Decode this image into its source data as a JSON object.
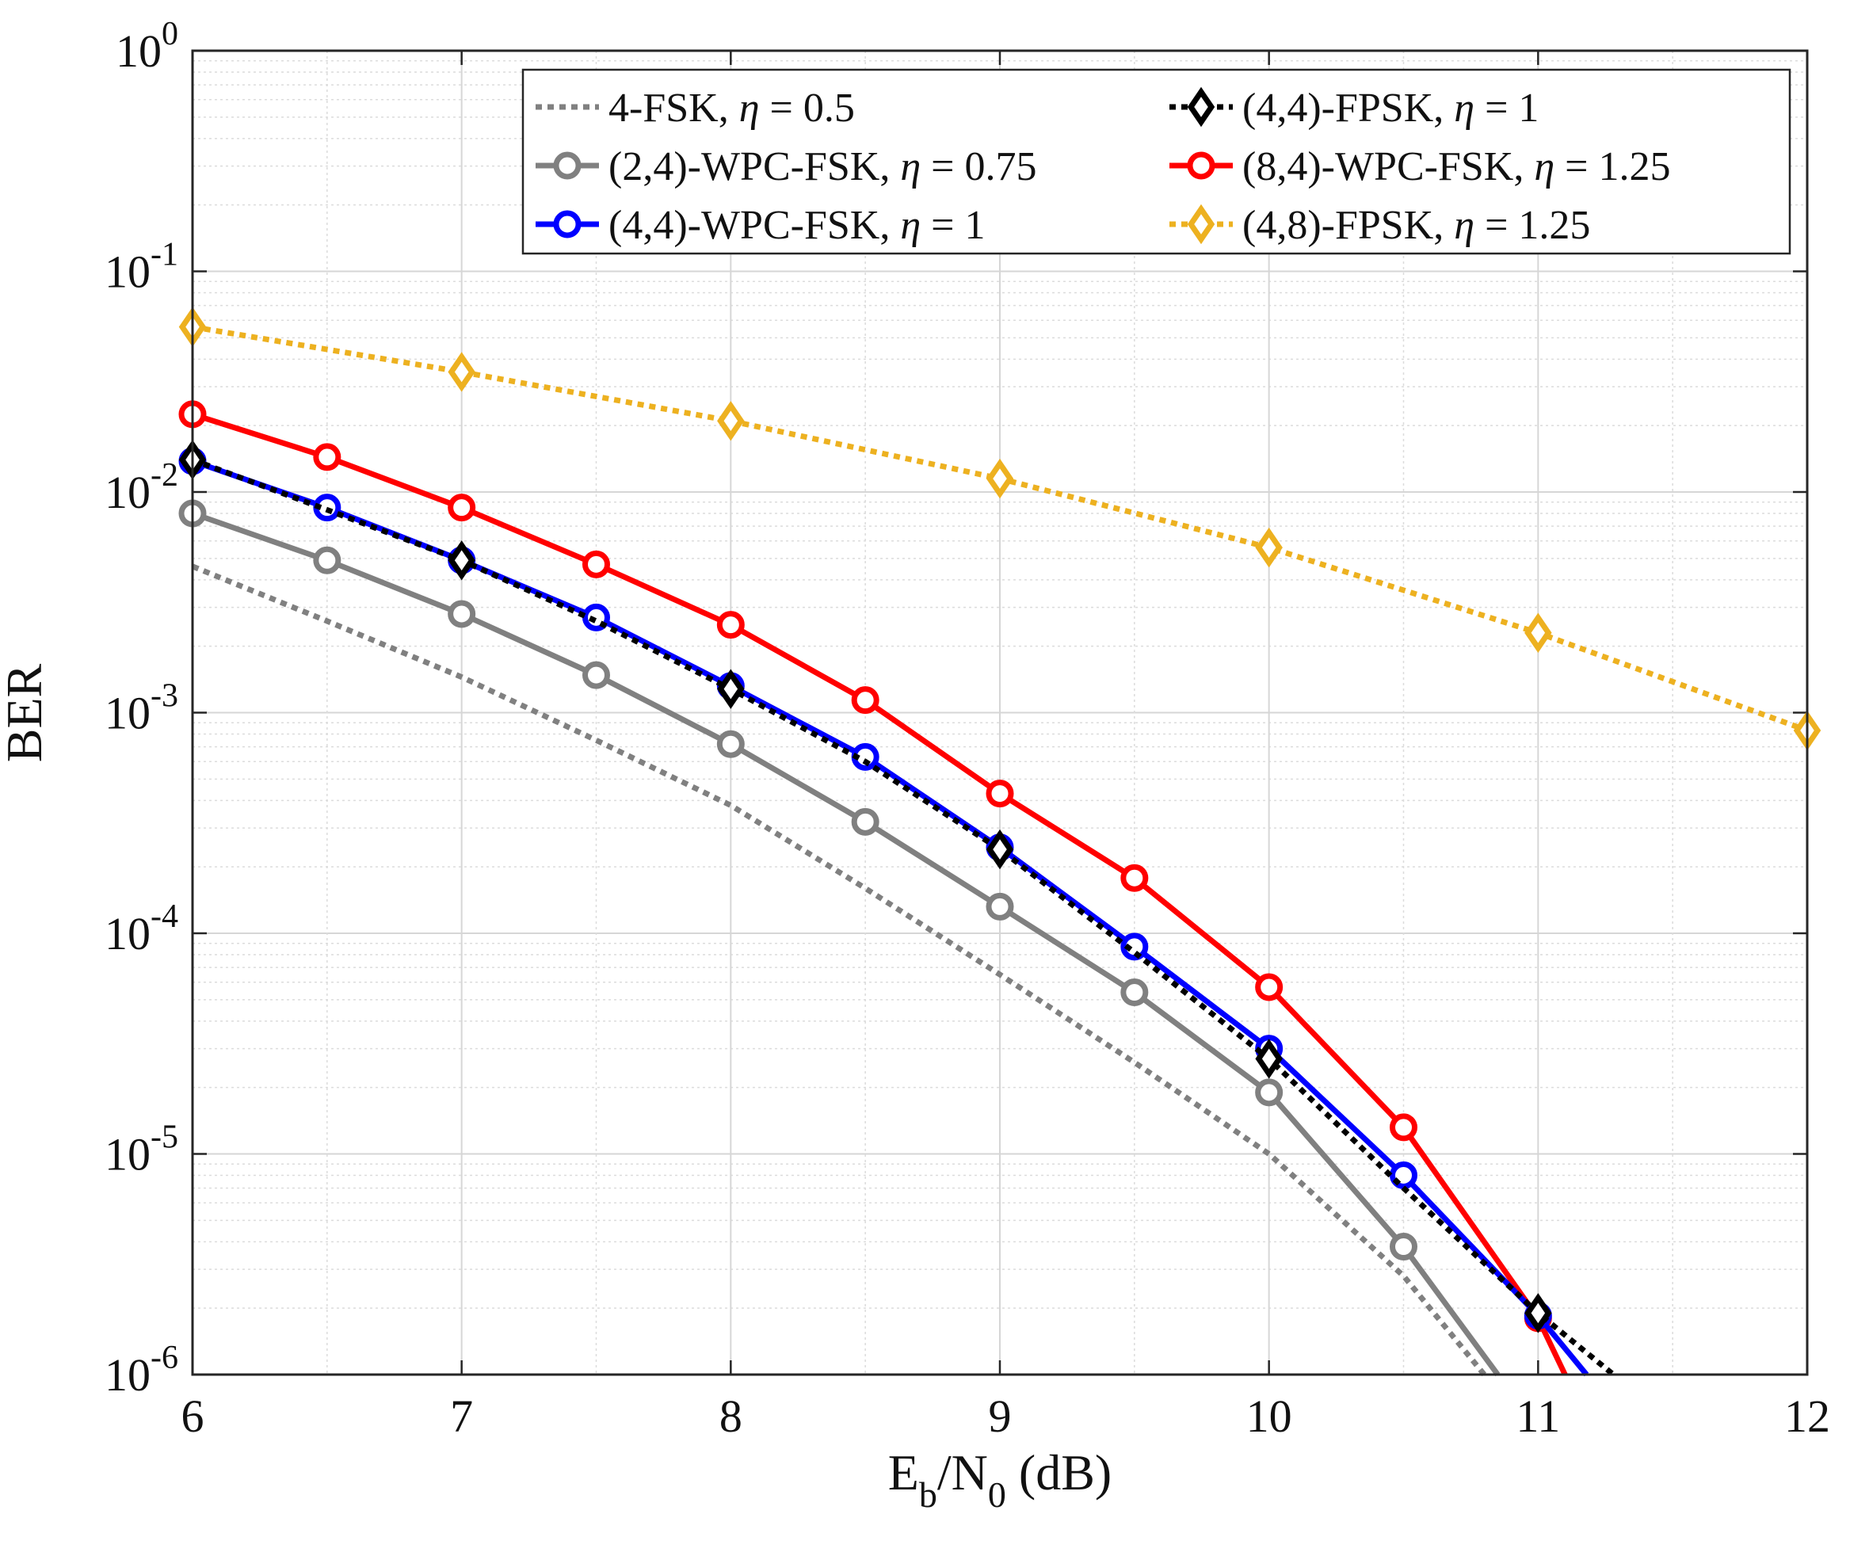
{
  "chart_data": {
    "type": "line",
    "title": "",
    "xlabel": "E_b/N_0 (dB)",
    "xlabel_parts": {
      "main1": "E",
      "sub1": "b",
      "main2": "/N",
      "sub2": "0",
      "suffix": " (dB)"
    },
    "ylabel": "BER",
    "xlim": [
      6,
      12
    ],
    "ylim": [
      1e-06,
      1
    ],
    "yscale": "log",
    "grid": true,
    "legend_position": "top-right",
    "x_ticks": [
      "6",
      "7",
      "8",
      "9",
      "10",
      "11",
      "12"
    ],
    "y_ticks": [
      {
        "base": "10",
        "exp": "0"
      },
      {
        "base": "10",
        "exp": "-1"
      },
      {
        "base": "10",
        "exp": "-2"
      },
      {
        "base": "10",
        "exp": "-3"
      },
      {
        "base": "10",
        "exp": "-4"
      },
      {
        "base": "10",
        "exp": "-5"
      },
      {
        "base": "10",
        "exp": "-6"
      }
    ],
    "series": [
      {
        "name": "4-FSK, η = 0.5",
        "label_prefix": "4-FSK, ",
        "label_eta": "η",
        "label_value": " = 0.5",
        "color": "#808080",
        "style": "dotted",
        "marker": "none",
        "x": [
          6,
          6.5,
          7,
          7.5,
          8,
          8.5,
          9,
          9.5,
          10,
          10.5,
          10.8
        ],
        "y": [
          0.0046,
          0.0026,
          0.00145,
          0.00075,
          0.00038,
          0.00016,
          6.5e-05,
          2.6e-05,
          1e-05,
          2.8e-06,
          1e-06
        ]
      },
      {
        "name": "(2,4)-WPC-FSK, η = 0.75",
        "label_prefix": "(2,4)-WPC-FSK, ",
        "label_eta": "η",
        "label_value": " = 0.75",
        "color": "#808080",
        "style": "solid",
        "marker": "circle",
        "x": [
          6,
          6.5,
          7,
          7.5,
          8,
          8.5,
          9,
          9.5,
          10,
          10.5,
          10.85
        ],
        "y": [
          0.008,
          0.0049,
          0.0028,
          0.00148,
          0.00072,
          0.00032,
          0.000132,
          5.4e-05,
          1.9e-05,
          3.8e-06,
          1e-06
        ],
        "markers_on": [
          6,
          6.5,
          7,
          7.5,
          8,
          8.5,
          9,
          9.5,
          10,
          10.5
        ]
      },
      {
        "name": "(4,4)-WPC-FSK, η = 1",
        "label_prefix": "(4,4)-WPC-FSK, ",
        "label_eta": "η",
        "label_value": " = 1",
        "color": "#0000ff",
        "style": "solid",
        "marker": "circle",
        "x": [
          6,
          6.5,
          7,
          7.5,
          8,
          8.5,
          9,
          9.5,
          10,
          10.5,
          11,
          11.18
        ],
        "y": [
          0.0138,
          0.0085,
          0.0049,
          0.0027,
          0.00132,
          0.00063,
          0.000245,
          8.7e-05,
          3e-05,
          8e-06,
          1.85e-06,
          1e-06
        ],
        "markers_on": [
          6,
          6.5,
          7,
          7.5,
          8,
          8.5,
          9,
          9.5,
          10,
          10.5,
          11
        ]
      },
      {
        "name": "(4,4)-FPSK, η = 1",
        "label_prefix": "(4,4)-FPSK, ",
        "label_eta": "η",
        "label_value": " = 1",
        "color": "#000000",
        "style": "dotted",
        "marker": "diamond",
        "x": [
          6,
          6.5,
          7,
          7.5,
          8,
          8.5,
          9,
          9.5,
          10,
          10.5,
          11,
          11.28
        ],
        "y": [
          0.014,
          0.0083,
          0.0049,
          0.0026,
          0.00128,
          0.0006,
          0.00024,
          8.2e-05,
          2.7e-05,
          7e-06,
          1.9e-06,
          1e-06
        ],
        "markers_on": [
          6,
          7,
          8,
          9,
          10,
          11
        ]
      },
      {
        "name": "(8,4)-WPC-FSK, η = 1.25",
        "label_prefix": "(8,4)-WPC-FSK, ",
        "label_eta": "η",
        "label_value": " = 1.25",
        "color": "#ff0000",
        "style": "solid",
        "marker": "circle",
        "x": [
          6,
          6.5,
          7,
          7.5,
          8,
          8.5,
          9,
          9.5,
          10,
          10.5,
          11,
          11.1
        ],
        "y": [
          0.0225,
          0.0144,
          0.0085,
          0.0047,
          0.0025,
          0.00114,
          0.00043,
          0.000178,
          5.7e-05,
          1.32e-05,
          1.8e-06,
          1e-06
        ],
        "markers_on": [
          6,
          6.5,
          7,
          7.5,
          8,
          8.5,
          9,
          9.5,
          10,
          10.5,
          11
        ]
      },
      {
        "name": "(4,8)-FPSK, η = 1.25",
        "label_prefix": "(4,8)-FPSK, ",
        "label_eta": "η",
        "label_value": " = 1.25",
        "color": "#edb120",
        "style": "dotted",
        "marker": "diamond",
        "x": [
          6,
          7,
          8,
          9,
          10,
          11,
          12
        ],
        "y": [
          0.056,
          0.035,
          0.021,
          0.0115,
          0.0056,
          0.0023,
          0.00083
        ],
        "markers_on": [
          6,
          7,
          8,
          9,
          10,
          11,
          12
        ]
      }
    ]
  }
}
